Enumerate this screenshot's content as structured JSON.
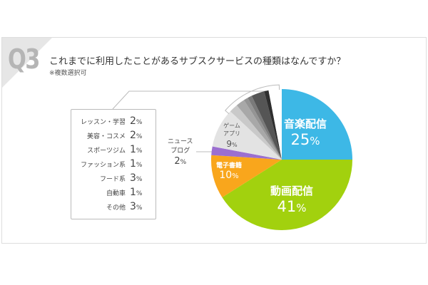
{
  "question_no": "Q3",
  "title": "これまでに利用したことがあるサブスクサービスの種類はなんですか？",
  "note": "※複数選択可",
  "chart_data": {
    "type": "pie",
    "title": "これまでに利用したことがあるサブスクサービスの種類はなんですか？",
    "slices": [
      {
        "label": "音楽配信",
        "value": 25,
        "color": "#3db8e6"
      },
      {
        "label": "動画配信",
        "value": 41,
        "color": "#a2d10e"
      },
      {
        "label": "電子書籍",
        "value": 10,
        "color": "#f9a61c"
      },
      {
        "label": "ニュースブログ",
        "value": 2,
        "color": "#9b6fd0"
      },
      {
        "label": "ゲームアプリ",
        "value": 9,
        "color": "#e3e3e3"
      },
      {
        "label": "レッスン・学習",
        "value": 2,
        "color": "#c9c9c9"
      },
      {
        "label": "美容・コスメ",
        "value": 2,
        "color": "#a8a8a8"
      },
      {
        "label": "スポーツジム",
        "value": 1,
        "color": "#949494"
      },
      {
        "label": "ファッション系",
        "value": 1,
        "color": "#7a7a7a"
      },
      {
        "label": "フード系",
        "value": 3,
        "color": "#555555"
      },
      {
        "label": "自動車",
        "value": 1,
        "color": "#2e2e2e"
      },
      {
        "label": "その他",
        "value": 3,
        "color": "#ffffff"
      }
    ]
  },
  "labels": {
    "music": {
      "name": "音楽配信",
      "pct": "25",
      "unit": "%"
    },
    "video": {
      "name": "動画配信",
      "pct": "41",
      "unit": "%"
    },
    "ebook": {
      "name": "電子書籍",
      "pct": "10",
      "unit": "%"
    },
    "news": {
      "name1": "ニュース",
      "name2": "ブログ",
      "pct": "2",
      "unit": "%"
    },
    "game": {
      "name1": "ゲーム",
      "name2": "アプリ",
      "pct": "9",
      "unit": "%"
    }
  },
  "others": [
    {
      "label": "レッスン・学習",
      "pct": "2",
      "unit": "%"
    },
    {
      "label": "美容・コスメ",
      "pct": "2",
      "unit": "%"
    },
    {
      "label": "スポーツジム",
      "pct": "1",
      "unit": "%"
    },
    {
      "label": "ファッション系",
      "pct": "1",
      "unit": "%"
    },
    {
      "label": "フード系",
      "pct": "3",
      "unit": "%"
    },
    {
      "label": "自動車",
      "pct": "1",
      "unit": "%"
    },
    {
      "label": "その他",
      "pct": "3",
      "unit": "%"
    }
  ]
}
